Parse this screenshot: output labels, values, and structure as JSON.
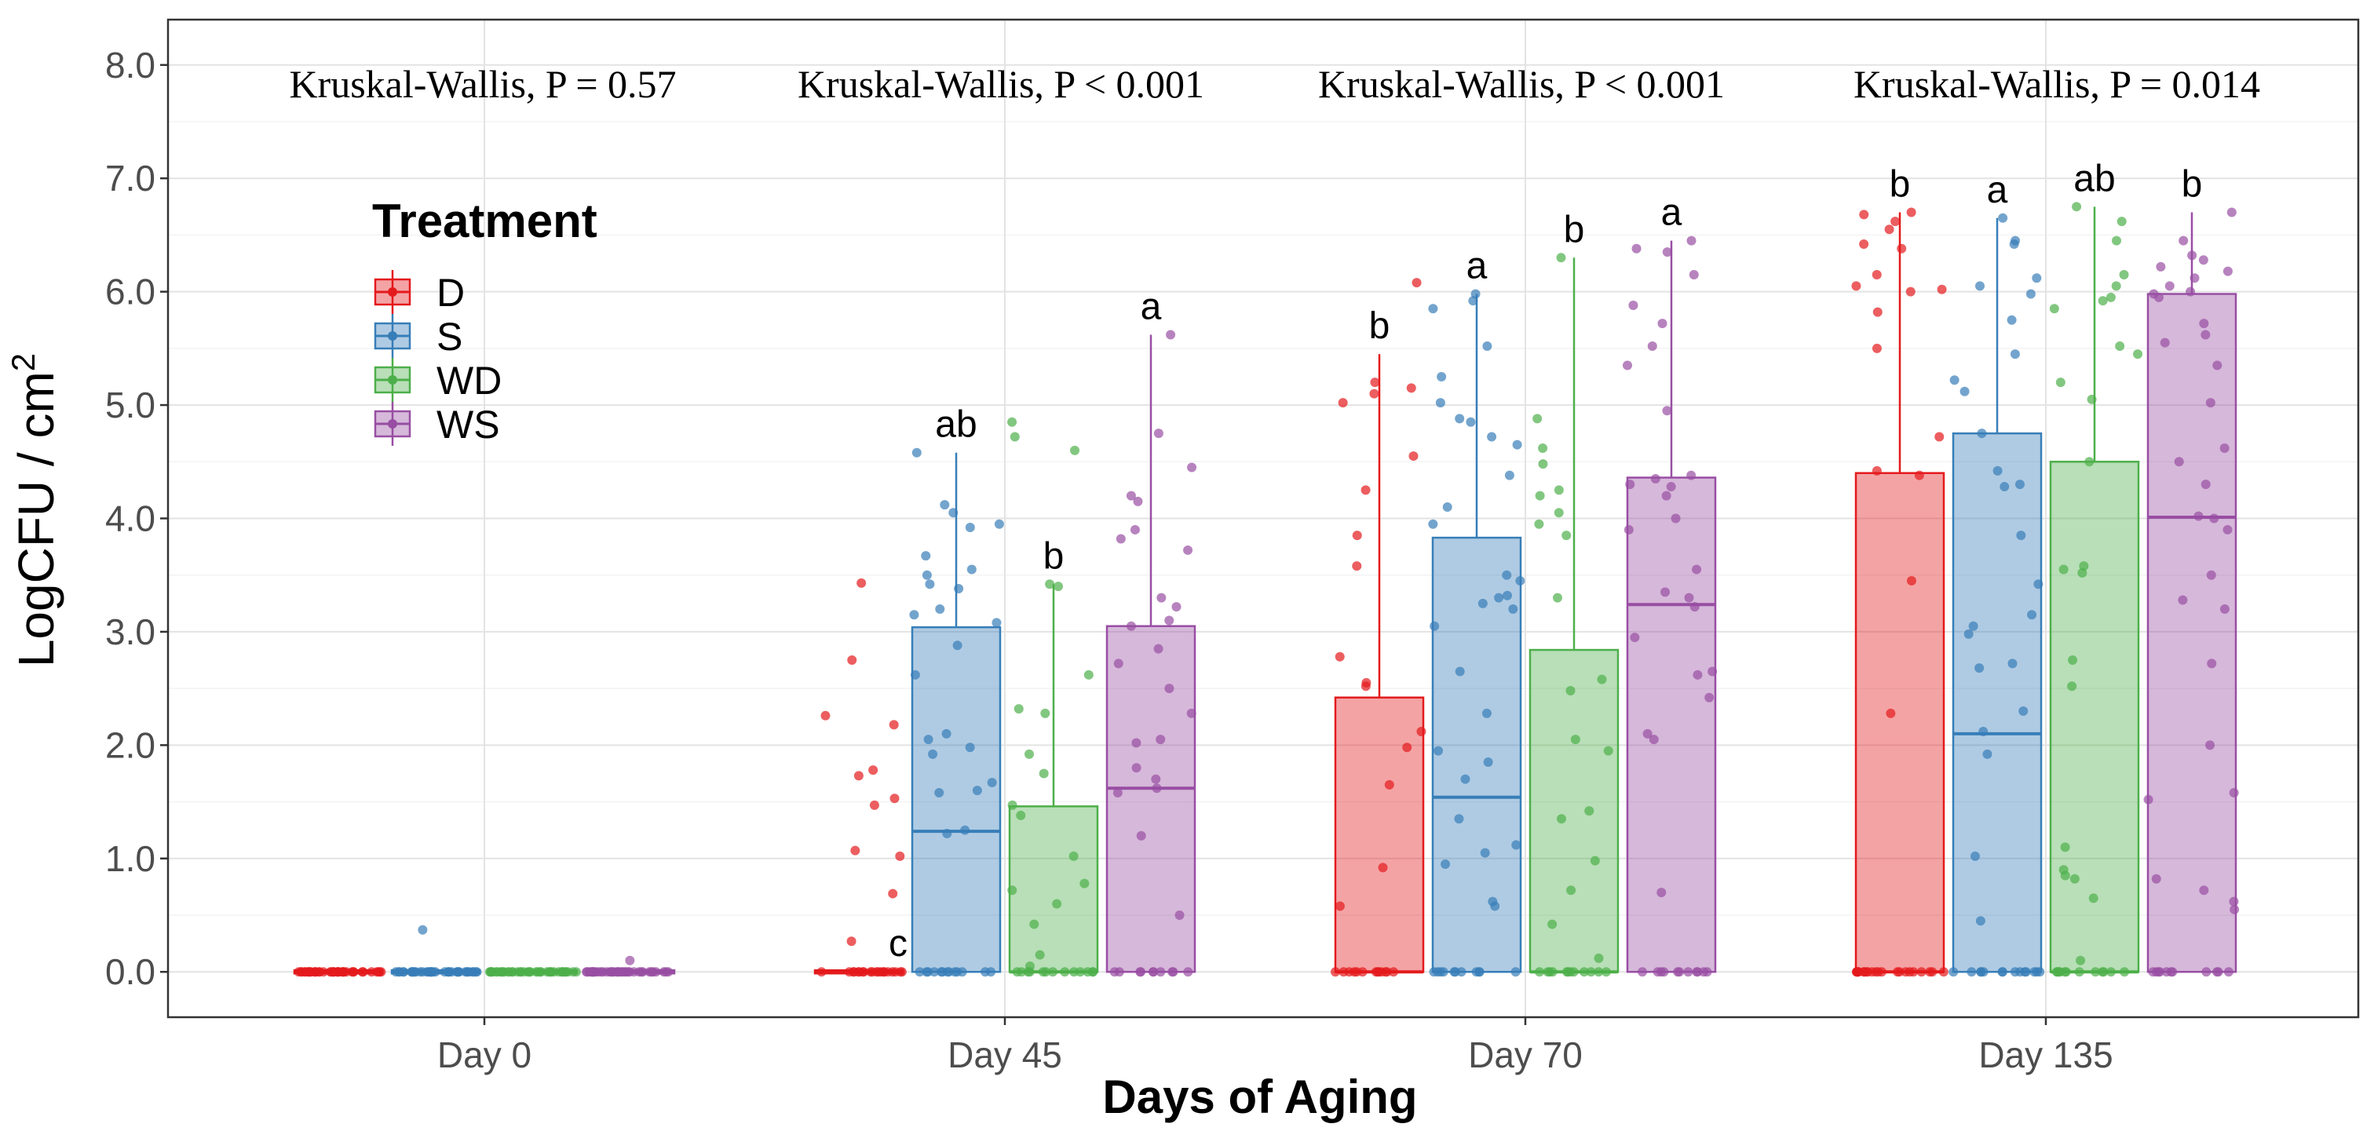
{
  "chart_data": {
    "type": "box",
    "title": "",
    "xlabel": "Days of Aging",
    "ylabel": "LogCFU / cm",
    "ylabel_superscript": "2",
    "ylim": [
      -0.4,
      8.4
    ],
    "y_ticks": [
      "0.0",
      "1.0",
      "2.0",
      "3.0",
      "4.0",
      "5.0",
      "6.0",
      "7.0",
      "8.0"
    ],
    "y_tick_values": [
      0,
      1,
      2,
      3,
      4,
      5,
      6,
      7,
      8
    ],
    "categories": [
      "Day 0",
      "Day 45",
      "Day 70",
      "Day 135"
    ],
    "legend": {
      "title": "Treatment",
      "position": "top-left",
      "entries": [
        {
          "name": "D",
          "color": "#e41a1c"
        },
        {
          "name": "S",
          "color": "#377eb8"
        },
        {
          "name": "WD",
          "color": "#4daf4a"
        },
        {
          "name": "WS",
          "color": "#984ea3"
        }
      ]
    },
    "tests": [
      "Kruskal-Wallis, P = 0.57",
      "Kruskal-Wallis, P < 0.001",
      "Kruskal-Wallis, P < 0.001",
      "Kruskal-Wallis, P = 0.014"
    ],
    "boxes": [
      {
        "day": "Day 0",
        "treatment": "D",
        "q1": 0,
        "median": 0,
        "q3": 0,
        "whisker_high": 0,
        "letter": "",
        "points": [
          0,
          0,
          0,
          0,
          0,
          0,
          0,
          0,
          0,
          0,
          0,
          0,
          0,
          0,
          0,
          0,
          0,
          0,
          0,
          0,
          0,
          0,
          0,
          0,
          0,
          0,
          0,
          0,
          0,
          0,
          0,
          0,
          0,
          0,
          0,
          0,
          0,
          0,
          0,
          0
        ]
      },
      {
        "day": "Day 0",
        "treatment": "S",
        "q1": 0,
        "median": 0,
        "q3": 0,
        "whisker_high": 0,
        "letter": "",
        "points": [
          0.37,
          0,
          0,
          0,
          0,
          0,
          0,
          0,
          0,
          0,
          0,
          0,
          0,
          0,
          0,
          0,
          0,
          0,
          0,
          0,
          0,
          0,
          0,
          0,
          0,
          0,
          0,
          0,
          0,
          0,
          0,
          0,
          0,
          0,
          0,
          0,
          0,
          0,
          0,
          0
        ]
      },
      {
        "day": "Day 0",
        "treatment": "WD",
        "q1": 0,
        "median": 0,
        "q3": 0,
        "whisker_high": 0,
        "letter": "",
        "points": [
          0,
          0,
          0,
          0,
          0,
          0,
          0,
          0,
          0,
          0,
          0,
          0,
          0,
          0,
          0,
          0,
          0,
          0,
          0,
          0,
          0,
          0,
          0,
          0,
          0,
          0,
          0,
          0,
          0,
          0,
          0,
          0,
          0,
          0,
          0,
          0,
          0,
          0,
          0,
          0
        ]
      },
      {
        "day": "Day 0",
        "treatment": "WS",
        "q1": 0,
        "median": 0,
        "q3": 0,
        "whisker_high": 0,
        "letter": "",
        "points": [
          0.1,
          0,
          0,
          0,
          0,
          0,
          0,
          0,
          0,
          0,
          0,
          0,
          0,
          0,
          0,
          0,
          0,
          0,
          0,
          0,
          0,
          0,
          0,
          0,
          0,
          0,
          0,
          0,
          0,
          0,
          0,
          0,
          0,
          0,
          0,
          0,
          0,
          0,
          0,
          0
        ]
      },
      {
        "day": "Day 45",
        "treatment": "D",
        "q1": 0,
        "median": 0,
        "q3": 0,
        "whisker_high": 0,
        "letter": "c",
        "points": [
          3.43,
          2.75,
          2.26,
          2.18,
          1.78,
          1.73,
          1.53,
          1.47,
          1.07,
          1.02,
          0.69,
          0.27,
          0,
          0,
          0,
          0,
          0,
          0,
          0,
          0,
          0,
          0,
          0,
          0,
          0,
          0,
          0,
          0,
          0,
          0,
          0,
          0
        ]
      },
      {
        "day": "Day 45",
        "treatment": "S",
        "q1": 0,
        "median": 1.24,
        "q3": 3.04,
        "whisker_high": 4.58,
        "letter": "ab",
        "points": [
          4.58,
          4.12,
          4.05,
          3.95,
          3.92,
          3.67,
          3.55,
          3.5,
          3.42,
          3.38,
          3.2,
          3.15,
          3.08,
          2.88,
          2.62,
          2.1,
          2.05,
          1.98,
          1.92,
          1.6,
          1.58,
          1.67,
          1.25,
          1.22,
          0,
          0,
          0,
          0,
          0,
          0,
          0,
          0,
          0,
          0,
          0,
          0,
          0
        ]
      },
      {
        "day": "Day 45",
        "treatment": "WD",
        "q1": 0,
        "median": 0,
        "q3": 1.46,
        "whisker_high": 3.42,
        "letter": "b",
        "points": [
          4.85,
          4.72,
          4.6,
          3.42,
          3.4,
          2.62,
          2.32,
          2.28,
          1.92,
          1.75,
          1.47,
          1.38,
          1.02,
          0.78,
          0.72,
          0.6,
          0.42,
          0.15,
          0.05,
          0,
          0,
          0,
          0,
          0,
          0,
          0,
          0,
          0,
          0,
          0,
          0,
          0
        ]
      },
      {
        "day": "Day 45",
        "treatment": "WS",
        "q1": 0,
        "median": 1.62,
        "q3": 3.05,
        "whisker_high": 5.62,
        "letter": "a",
        "points": [
          5.62,
          4.75,
          4.45,
          4.2,
          4.15,
          3.9,
          3.82,
          3.72,
          3.3,
          3.22,
          3.1,
          3.05,
          2.85,
          2.72,
          2.5,
          2.28,
          2.05,
          2.02,
          1.8,
          1.7,
          1.62,
          1.58,
          1.2,
          0.5,
          0,
          0,
          0,
          0,
          0,
          0,
          0,
          0,
          0,
          0
        ]
      },
      {
        "day": "Day 70",
        "treatment": "D",
        "q1": 0,
        "median": 0,
        "q3": 2.42,
        "whisker_high": 5.45,
        "letter": "b",
        "points": [
          6.08,
          5.2,
          5.15,
          5.1,
          5.02,
          4.55,
          4.25,
          3.85,
          3.58,
          2.78,
          2.55,
          2.52,
          2.12,
          1.98,
          1.65,
          0.92,
          0.58,
          0,
          0,
          0,
          0,
          0,
          0,
          0,
          0,
          0,
          0,
          0,
          0,
          0
        ]
      },
      {
        "day": "Day 70",
        "treatment": "S",
        "q1": 0,
        "median": 1.54,
        "q3": 3.83,
        "whisker_high": 5.98,
        "letter": "a",
        "points": [
          5.98,
          5.92,
          5.85,
          5.52,
          5.25,
          5.02,
          4.88,
          4.85,
          4.72,
          4.65,
          4.38,
          4.1,
          3.95,
          3.5,
          3.45,
          3.32,
          3.3,
          3.25,
          3.2,
          3.05,
          2.65,
          2.28,
          1.95,
          1.85,
          1.7,
          1.35,
          1.12,
          1.05,
          0.95,
          0.62,
          0.58,
          0,
          0,
          0,
          0,
          0,
          0,
          0,
          0,
          0,
          0,
          0
        ]
      },
      {
        "day": "Day 70",
        "treatment": "WD",
        "q1": 0,
        "median": 0,
        "q3": 2.84,
        "whisker_high": 6.3,
        "letter": "b",
        "points": [
          6.3,
          4.88,
          4.62,
          4.48,
          4.25,
          4.2,
          4.05,
          3.95,
          3.85,
          3.3,
          2.58,
          2.48,
          2.05,
          1.95,
          1.42,
          1.35,
          0.98,
          0.72,
          0.42,
          0.12,
          0,
          0,
          0,
          0,
          0,
          0,
          0,
          0,
          0,
          0,
          0,
          0
        ]
      },
      {
        "day": "Day 70",
        "treatment": "WS",
        "q1": 0,
        "median": 3.24,
        "q3": 4.36,
        "whisker_high": 6.45,
        "letter": "a",
        "points": [
          6.45,
          6.38,
          6.35,
          6.15,
          5.88,
          5.72,
          5.52,
          5.35,
          4.95,
          4.38,
          4.35,
          4.3,
          4.28,
          4.2,
          4.0,
          3.9,
          3.55,
          3.35,
          3.3,
          3.22,
          2.95,
          2.65,
          2.62,
          2.42,
          2.1,
          2.05,
          0.7,
          0,
          0,
          0,
          0,
          0,
          0,
          0,
          0,
          0,
          0,
          0
        ]
      },
      {
        "day": "Day 135",
        "treatment": "D",
        "q1": 0,
        "median": 0,
        "q3": 4.4,
        "whisker_high": 6.7,
        "letter": "b",
        "points": [
          6.7,
          6.68,
          6.62,
          6.55,
          6.42,
          6.38,
          6.15,
          6.05,
          6.02,
          6.0,
          5.82,
          5.5,
          4.72,
          4.42,
          4.38,
          3.45,
          2.28,
          0,
          0,
          0,
          0,
          0,
          0,
          0,
          0,
          0,
          0,
          0,
          0,
          0,
          0,
          0,
          0,
          0,
          0,
          0,
          0,
          0,
          0,
          0
        ]
      },
      {
        "day": "Day 135",
        "treatment": "S",
        "q1": 0,
        "median": 2.1,
        "q3": 4.75,
        "whisker_high": 6.65,
        "letter": "a",
        "points": [
          6.65,
          6.45,
          6.42,
          6.12,
          6.05,
          5.98,
          5.75,
          5.45,
          5.22,
          5.12,
          4.75,
          4.42,
          4.3,
          4.28,
          3.85,
          3.42,
          3.15,
          3.05,
          2.98,
          2.72,
          2.68,
          2.3,
          2.12,
          1.92,
          1.02,
          0.45,
          0,
          0,
          0,
          0,
          0,
          0,
          0,
          0,
          0,
          0,
          0,
          0,
          0,
          0
        ]
      },
      {
        "day": "Day 135",
        "treatment": "WD",
        "q1": 0,
        "median": 0,
        "q3": 4.5,
        "whisker_high": 6.75,
        "letter": "ab",
        "points": [
          6.75,
          6.62,
          6.45,
          6.15,
          6.05,
          5.95,
          5.92,
          5.85,
          5.52,
          5.45,
          5.2,
          5.05,
          4.5,
          3.58,
          3.55,
          3.52,
          2.75,
          2.52,
          1.1,
          0.9,
          0.85,
          0.82,
          0.65,
          0.1,
          0,
          0,
          0,
          0,
          0,
          0,
          0,
          0,
          0,
          0,
          0,
          0
        ]
      },
      {
        "day": "Day 135",
        "treatment": "WS",
        "q1": 0,
        "median": 4.01,
        "q3": 5.98,
        "whisker_high": 6.7,
        "letter": "b",
        "points": [
          6.7,
          6.45,
          6.32,
          6.28,
          6.22,
          6.18,
          6.12,
          6.05,
          6.0,
          5.98,
          5.95,
          5.72,
          5.62,
          5.55,
          5.35,
          5.02,
          4.62,
          4.5,
          4.3,
          4.02,
          4.0,
          3.9,
          3.5,
          3.28,
          3.2,
          2.72,
          2.0,
          1.58,
          1.52,
          0.82,
          0.72,
          0.62,
          0.55,
          0,
          0,
          0,
          0,
          0,
          0,
          0,
          0,
          0,
          0,
          0
        ]
      }
    ]
  }
}
